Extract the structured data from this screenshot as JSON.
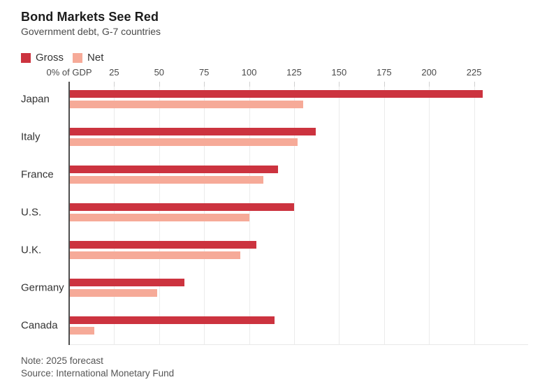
{
  "header": {
    "title": "Bond Markets See Red",
    "subtitle": "Government debt, G-7 countries"
  },
  "legend": {
    "gross": "Gross",
    "net": "Net"
  },
  "colors": {
    "gross": "#cc333f",
    "net": "#f6aa98",
    "gridline": "#ebebeb",
    "axis_line": "#4f4f4f"
  },
  "axis": {
    "zero_label": "0% of GDP",
    "ticks": [
      25,
      50,
      75,
      100,
      125,
      150,
      175,
      200,
      225
    ]
  },
  "footer": {
    "note": "Note: 2025 forecast",
    "source": "Source: International Monetary Fund"
  },
  "chart_data": {
    "type": "bar",
    "orientation": "horizontal",
    "title": "Bond Markets See Red",
    "subtitle": "Government debt, G-7 countries",
    "xlabel": "% of GDP",
    "categories": [
      "Japan",
      "Italy",
      "France",
      "U.S.",
      "U.K.",
      "Germany",
      "Canada"
    ],
    "series": [
      {
        "name": "Gross",
        "color": "#cc333f",
        "values": [
          230,
          137,
          116,
          125,
          104,
          64,
          114
        ]
      },
      {
        "name": "Net",
        "color": "#f6aa98",
        "values": [
          130,
          127,
          108,
          100,
          95,
          49,
          14
        ]
      }
    ],
    "xlim": [
      0,
      233
    ],
    "x_tick_interval": 25,
    "grid": true,
    "legend_position": "top-left",
    "note": "2025 forecast",
    "source": "International Monetary Fund"
  }
}
